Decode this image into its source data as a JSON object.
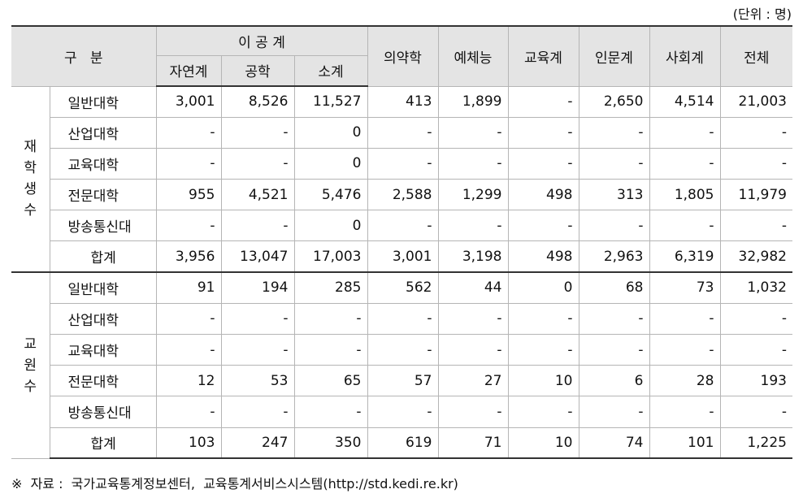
{
  "unit_label": "(단위 : 명)",
  "header": {
    "gubun": "구   분",
    "ig_group": "이 공 계",
    "ig_sub": [
      "자연계",
      "공학",
      "소계"
    ],
    "others": [
      "의약학",
      "예체능",
      "교육계",
      "인문계",
      "사회계",
      "전체"
    ]
  },
  "groups": [
    {
      "label_chars": [
        "재",
        "학",
        "생",
        "수"
      ],
      "rows": [
        {
          "name": "일반대학",
          "values": [
            "3,001",
            "8,526",
            "11,527",
            "413",
            "1,899",
            "-",
            "2,650",
            "4,514",
            "21,003"
          ]
        },
        {
          "name": "산업대학",
          "values": [
            "-",
            "-",
            "0",
            "-",
            "-",
            "-",
            "-",
            "-",
            "-"
          ]
        },
        {
          "name": "교육대학",
          "values": [
            "-",
            "-",
            "0",
            "-",
            "-",
            "-",
            "-",
            "-",
            "-"
          ]
        },
        {
          "name": "전문대학",
          "values": [
            "955",
            "4,521",
            "5,476",
            "2,588",
            "1,299",
            "498",
            "313",
            "1,805",
            "11,979"
          ]
        },
        {
          "name": "방송통신대",
          "values": [
            "-",
            "-",
            "0",
            "-",
            "-",
            "-",
            "-",
            "-",
            "-"
          ]
        },
        {
          "name": "합계",
          "values": [
            "3,956",
            "13,047",
            "17,003",
            "3,001",
            "3,198",
            "498",
            "2,963",
            "6,319",
            "32,982"
          ]
        }
      ]
    },
    {
      "label_chars": [
        "교",
        "원",
        "수"
      ],
      "rows": [
        {
          "name": "일반대학",
          "values": [
            "91",
            "194",
            "285",
            "562",
            "44",
            "0",
            "68",
            "73",
            "1,032"
          ]
        },
        {
          "name": "산업대학",
          "values": [
            "-",
            "-",
            "-",
            "-",
            "-",
            "-",
            "-",
            "-",
            "-"
          ]
        },
        {
          "name": "교육대학",
          "values": [
            "-",
            "-",
            "-",
            "-",
            "-",
            "-",
            "-",
            "-",
            "-"
          ]
        },
        {
          "name": "전문대학",
          "values": [
            "12",
            "53",
            "65",
            "57",
            "27",
            "10",
            "6",
            "28",
            "193"
          ]
        },
        {
          "name": "방송통신대",
          "values": [
            "-",
            "-",
            "-",
            "-",
            "-",
            "-",
            "-",
            "-",
            "-"
          ]
        },
        {
          "name": "합계",
          "values": [
            "103",
            "247",
            "350",
            "619",
            "71",
            "10",
            "74",
            "101",
            "1,225"
          ]
        }
      ]
    }
  ],
  "source_note": "※  자료 :  국가교육통계정보센터,  교육통계서비스시스템(http://std.kedi.re.kr)"
}
